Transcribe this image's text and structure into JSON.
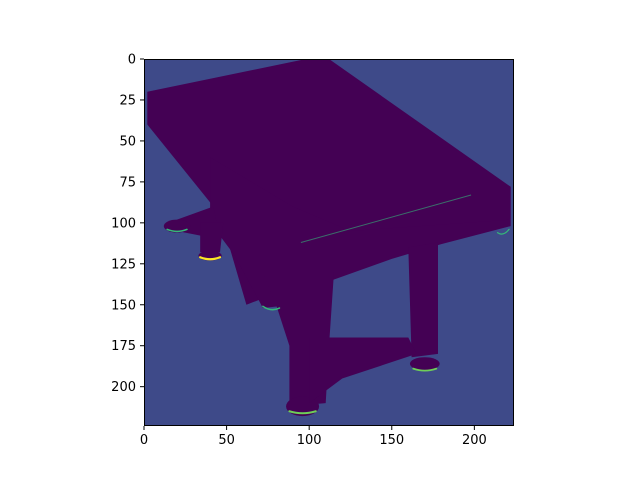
{
  "chart_data": {
    "type": "heatmap",
    "title": "",
    "xlabel": "",
    "ylabel": "",
    "xlim": [
      0,
      224
    ],
    "ylim": [
      224,
      0
    ],
    "y_axis_inverted": true,
    "grid": false,
    "colormap": "viridis",
    "x_ticks": [
      0,
      50,
      100,
      150,
      200
    ],
    "y_ticks": [
      0,
      25,
      50,
      75,
      100,
      125,
      150,
      175,
      200
    ],
    "x_tick_labels": [
      "0",
      "50",
      "100",
      "150",
      "200"
    ],
    "y_tick_labels": [
      "0",
      "25",
      "50",
      "75",
      "100",
      "125",
      "150",
      "175",
      "200"
    ],
    "background_color": "#3e4a89",
    "object_color": "#440154",
    "highlight_colors": [
      "#35b779",
      "#6ece58",
      "#fde725"
    ],
    "image_content": "dark silhouette of a pool table on a blue-violet background with faint green-yellow edge highlights"
  }
}
